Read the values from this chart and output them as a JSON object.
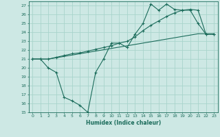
{
  "xlabel": "Humidex (Indice chaleur)",
  "background_color": "#cde8e4",
  "grid_color": "#a8d4cc",
  "line_color": "#1a6b5a",
  "xlim": [
    -0.5,
    23.5
  ],
  "ylim": [
    15,
    27.5
  ],
  "yticks": [
    15,
    16,
    17,
    18,
    19,
    20,
    21,
    22,
    23,
    24,
    25,
    26,
    27
  ],
  "xticks": [
    0,
    1,
    2,
    3,
    4,
    5,
    6,
    7,
    8,
    9,
    10,
    11,
    12,
    13,
    14,
    15,
    16,
    17,
    18,
    19,
    20,
    21,
    22,
    23
  ],
  "series1_x": [
    0,
    1,
    2,
    3,
    4,
    5,
    6,
    7,
    8,
    9,
    10,
    11,
    12,
    13,
    14,
    15,
    16,
    17,
    18,
    19,
    20,
    21,
    22,
    23
  ],
  "series1_y": [
    21.0,
    21.0,
    20.0,
    19.5,
    16.7,
    16.3,
    15.8,
    15.0,
    19.5,
    21.0,
    22.8,
    22.8,
    22.3,
    23.8,
    25.0,
    27.2,
    26.5,
    27.2,
    26.6,
    26.5,
    26.5,
    25.0,
    23.8,
    23.8
  ],
  "series2_x": [
    0,
    1,
    2,
    3,
    4,
    5,
    6,
    7,
    8,
    9,
    10,
    11,
    12,
    13,
    14,
    15,
    16,
    17,
    18,
    19,
    20,
    21,
    22,
    23
  ],
  "series2_y": [
    21.0,
    21.0,
    21.0,
    21.15,
    21.3,
    21.45,
    21.6,
    21.75,
    21.9,
    22.05,
    22.2,
    22.35,
    22.5,
    22.65,
    22.8,
    22.95,
    23.1,
    23.25,
    23.4,
    23.55,
    23.7,
    23.85,
    23.85,
    23.85
  ],
  "series3_x": [
    0,
    1,
    2,
    3,
    4,
    5,
    6,
    7,
    8,
    9,
    10,
    11,
    12,
    13,
    14,
    15,
    16,
    17,
    18,
    19,
    20,
    21,
    22,
    23
  ],
  "series3_y": [
    21.0,
    21.0,
    21.0,
    21.2,
    21.4,
    21.6,
    21.7,
    21.9,
    22.1,
    22.3,
    22.5,
    22.8,
    23.0,
    23.5,
    24.2,
    24.8,
    25.3,
    25.8,
    26.2,
    26.5,
    26.6,
    26.5,
    23.8,
    23.8
  ]
}
